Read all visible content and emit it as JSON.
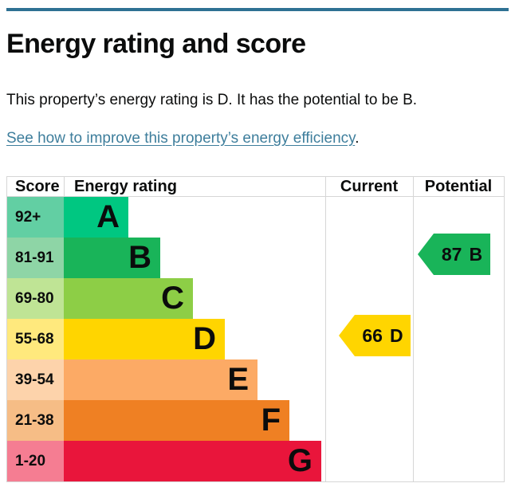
{
  "theme": {
    "rule_color": "#2e7193",
    "link_color": "#3e7e9c",
    "text_color": "#0b0c0c",
    "table_border_color": "#d6d6d6"
  },
  "page_header": {
    "title": "Energy rating and score"
  },
  "intro": {
    "text": "This property’s energy rating is D. It has the potential to be B.",
    "link_text": "See how to improve this property’s energy efficiency",
    "link_suffix": "."
  },
  "chart_data": {
    "type": "bar",
    "title": "Energy rating and score",
    "columns": [
      "Score",
      "Energy rating",
      "Current",
      "Potential"
    ],
    "legend_position": "none",
    "grid": false,
    "bands": [
      {
        "letter": "A",
        "score_range": "92+",
        "bar_color": "#00c781",
        "score_color": "#62cfa3"
      },
      {
        "letter": "B",
        "score_range": "81-91",
        "bar_color": "#19b459",
        "score_color": "#8ed5a6"
      },
      {
        "letter": "C",
        "score_range": "69-80",
        "bar_color": "#8dce46",
        "score_color": "#bfe495"
      },
      {
        "letter": "D",
        "score_range": "55-68",
        "bar_color": "#ffd500",
        "score_color": "#ffe97d"
      },
      {
        "letter": "E",
        "score_range": "39-54",
        "bar_color": "#fcaa65",
        "score_color": "#fdd3ab"
      },
      {
        "letter": "F",
        "score_range": "21-38",
        "bar_color": "#ef8023",
        "score_color": "#f6bd86"
      },
      {
        "letter": "G",
        "score_range": "1-20",
        "bar_color": "#e9153b",
        "score_color": "#f57d92"
      }
    ],
    "current": {
      "value": 66,
      "band": "D",
      "arrow_color": "#ffd500"
    },
    "potential": {
      "value": 87,
      "band": "B",
      "arrow_color": "#19b459"
    }
  }
}
